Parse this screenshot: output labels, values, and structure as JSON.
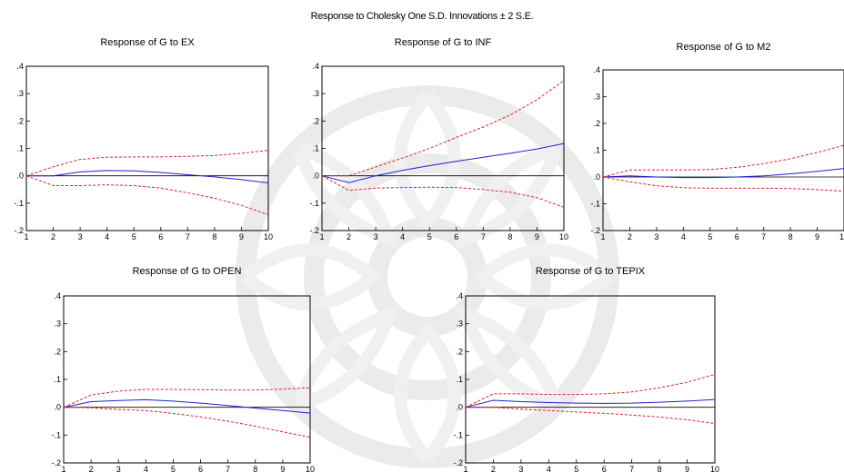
{
  "title": "Response to Cholesky One S.D. Innovations ± 2 S.E.",
  "colors": {
    "response": "#2020d0",
    "band": "#e02020",
    "zero": "#000000",
    "frame": "#000000"
  },
  "chart_data": [
    {
      "type": "line",
      "title": "Response of G to EX",
      "x": [
        1,
        2,
        3,
        4,
        5,
        6,
        7,
        8,
        9,
        10
      ],
      "ylim": [
        -0.2,
        0.4
      ],
      "yticks": [
        "-.2",
        "-.1",
        ".0",
        ".1",
        ".2",
        ".3",
        ".4"
      ],
      "series": [
        {
          "role": "response",
          "values": [
            0.0,
            0.0,
            0.014,
            0.019,
            0.018,
            0.012,
            0.004,
            -0.004,
            -0.014,
            -0.026
          ]
        },
        {
          "role": "upper",
          "values": [
            0.0,
            0.033,
            0.06,
            0.068,
            0.069,
            0.069,
            0.071,
            0.074,
            0.082,
            0.093
          ]
        },
        {
          "role": "lower",
          "values": [
            0.0,
            -0.036,
            -0.036,
            -0.033,
            -0.036,
            -0.045,
            -0.062,
            -0.082,
            -0.108,
            -0.142
          ]
        }
      ]
    },
    {
      "type": "line",
      "title": "Response of G to INF",
      "x": [
        1,
        2,
        3,
        4,
        5,
        6,
        7,
        8,
        9,
        10
      ],
      "ylim": [
        -0.2,
        0.4
      ],
      "yticks": [
        "-.2",
        "-.1",
        ".0",
        ".1",
        ".2",
        ".3",
        ".4"
      ],
      "series": [
        {
          "role": "response",
          "values": [
            0.0,
            -0.025,
            0.0,
            0.02,
            0.037,
            0.053,
            0.068,
            0.082,
            0.098,
            0.118
          ]
        },
        {
          "role": "upper",
          "values": [
            0.0,
            0.0,
            0.032,
            0.065,
            0.1,
            0.14,
            0.178,
            0.222,
            0.278,
            0.348
          ]
        },
        {
          "role": "lower",
          "values": [
            0.0,
            -0.053,
            -0.045,
            -0.043,
            -0.042,
            -0.043,
            -0.05,
            -0.06,
            -0.08,
            -0.115
          ]
        }
      ]
    },
    {
      "type": "line",
      "title": "Response of G to M2",
      "x": [
        1,
        2,
        3,
        4,
        5,
        6,
        7,
        8,
        9,
        10
      ],
      "ylim": [
        -0.2,
        0.4
      ],
      "yticks": [
        "-.2",
        "-.1",
        ".0",
        ".1",
        ".2",
        ".3",
        ".4"
      ],
      "series": [
        {
          "role": "response",
          "values": [
            0.0,
            0.004,
            0.0,
            -0.002,
            -0.002,
            0.0,
            0.004,
            0.012,
            0.021,
            0.032
          ]
        },
        {
          "role": "upper",
          "values": [
            0.0,
            0.026,
            0.026,
            0.026,
            0.028,
            0.036,
            0.05,
            0.068,
            0.092,
            0.118
          ]
        },
        {
          "role": "lower",
          "values": [
            0.0,
            -0.018,
            -0.033,
            -0.04,
            -0.042,
            -0.042,
            -0.042,
            -0.043,
            -0.047,
            -0.053
          ]
        }
      ]
    },
    {
      "type": "line",
      "title": "Response of G to OPEN",
      "x": [
        1,
        2,
        3,
        4,
        5,
        6,
        7,
        8,
        9,
        10
      ],
      "ylim": [
        -0.2,
        0.4
      ],
      "yticks": [
        "-.2",
        "-.1",
        ".0",
        ".1",
        ".2",
        ".3",
        ".4"
      ],
      "series": [
        {
          "role": "response",
          "values": [
            0.0,
            0.02,
            0.024,
            0.027,
            0.022,
            0.015,
            0.006,
            -0.003,
            -0.012,
            -0.021
          ]
        },
        {
          "role": "upper",
          "values": [
            0.0,
            0.044,
            0.058,
            0.064,
            0.064,
            0.063,
            0.062,
            0.062,
            0.065,
            0.07
          ]
        },
        {
          "role": "lower",
          "values": [
            0.0,
            -0.002,
            -0.008,
            -0.012,
            -0.022,
            -0.035,
            -0.05,
            -0.068,
            -0.088,
            -0.108
          ]
        }
      ]
    },
    {
      "type": "line",
      "title": "Response of G to TEPIX",
      "x": [
        1,
        2,
        3,
        4,
        5,
        6,
        7,
        8,
        9,
        10
      ],
      "ylim": [
        -0.2,
        0.4
      ],
      "yticks": [
        "-.2",
        "-.1",
        ".0",
        ".1",
        ".2",
        ".3",
        ".4"
      ],
      "series": [
        {
          "role": "response",
          "values": [
            0.0,
            0.025,
            0.02,
            0.017,
            0.015,
            0.014,
            0.015,
            0.018,
            0.022,
            0.028
          ]
        },
        {
          "role": "upper",
          "values": [
            0.0,
            0.048,
            0.048,
            0.046,
            0.046,
            0.048,
            0.055,
            0.07,
            0.09,
            0.118
          ]
        },
        {
          "role": "lower",
          "values": [
            0.0,
            0.0,
            -0.007,
            -0.012,
            -0.017,
            -0.022,
            -0.028,
            -0.035,
            -0.045,
            -0.058
          ]
        }
      ]
    }
  ]
}
